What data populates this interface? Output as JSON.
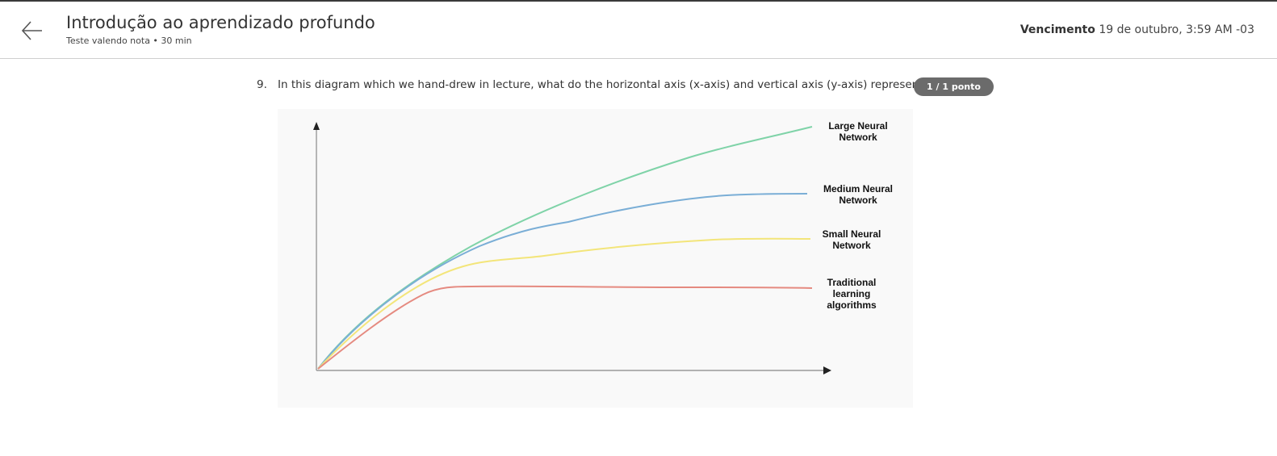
{
  "header": {
    "title": "Introdução ao aprendizado profundo",
    "subtitle": "Teste valendo nota • 30 min",
    "due_label": "Vencimento",
    "due_value": "19 de outubro, 3:59 AM -03"
  },
  "question": {
    "number": "9.",
    "text": "In this diagram which we hand-drew in lecture, what do the horizontal axis (x-axis) and vertical axis (y-axis) represent?",
    "points": "1 / 1 ponto"
  },
  "diagram": {
    "labels": {
      "large_line1": "Large Neural",
      "large_line2": "Network",
      "medium_line1": "Medium Neural",
      "medium_line2": "Network",
      "small_line1": "Small Neural",
      "small_line2": "Network",
      "traditional_line1": "Traditional",
      "traditional_line2": "learning",
      "traditional_line3": "algorithms"
    },
    "colors": {
      "large": "#7fd3a8",
      "medium": "#7aaed6",
      "small": "#f3e57a",
      "traditional": "#e58a80",
      "axis": "#999999"
    }
  }
}
